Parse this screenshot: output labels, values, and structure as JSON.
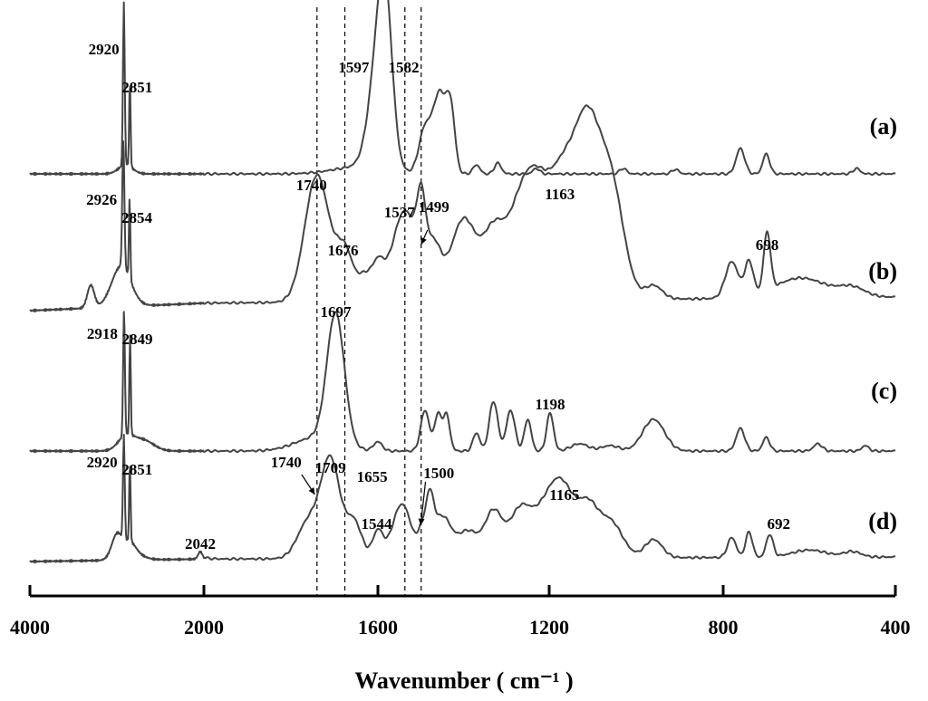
{
  "chart_data": {
    "type": "line",
    "xlabel": "Wavenumber ( cm⁻¹ )",
    "xlim": [
      4000,
      400
    ],
    "x_ticks": [
      4000,
      2000,
      1600,
      1200,
      800,
      400
    ],
    "x_tick_labels": [
      "4000",
      "2000",
      "1600",
      "1200",
      "800",
      "400"
    ],
    "reference_lines": [
      1740,
      1676,
      1537,
      1499
    ],
    "series": [
      {
        "name": "(a)",
        "peak_labels": [
          {
            "x": 2920,
            "text": "2920"
          },
          {
            "x": 2851,
            "text": "2851"
          },
          {
            "x": 1597,
            "text": "1597"
          },
          {
            "x": 1582,
            "text": "1582"
          }
        ]
      },
      {
        "name": "(b)",
        "peak_labels": [
          {
            "x": 2926,
            "text": "2926"
          },
          {
            "x": 2854,
            "text": "2854"
          },
          {
            "x": 1740,
            "text": "1740"
          },
          {
            "x": 1676,
            "text": "1676"
          },
          {
            "x": 1537,
            "text": "1537"
          },
          {
            "x": 1499,
            "text": "1499"
          },
          {
            "x": 1163,
            "text": "1163"
          },
          {
            "x": 698,
            "text": "698"
          }
        ]
      },
      {
        "name": "(c)",
        "peak_labels": [
          {
            "x": 2918,
            "text": "2918"
          },
          {
            "x": 2849,
            "text": "2849"
          },
          {
            "x": 1697,
            "text": "1697"
          },
          {
            "x": 1198,
            "text": "1198"
          }
        ]
      },
      {
        "name": "(d)",
        "peak_labels": [
          {
            "x": 2920,
            "text": "2920"
          },
          {
            "x": 2851,
            "text": "2851"
          },
          {
            "x": 2042,
            "text": "2042"
          },
          {
            "x": 1740,
            "text": "1740"
          },
          {
            "x": 1709,
            "text": "1709"
          },
          {
            "x": 1655,
            "text": "1655"
          },
          {
            "x": 1544,
            "text": "1544"
          },
          {
            "x": 1500,
            "text": "1500"
          },
          {
            "x": 1165,
            "text": "1165"
          },
          {
            "x": 692,
            "text": "692"
          }
        ]
      }
    ]
  }
}
